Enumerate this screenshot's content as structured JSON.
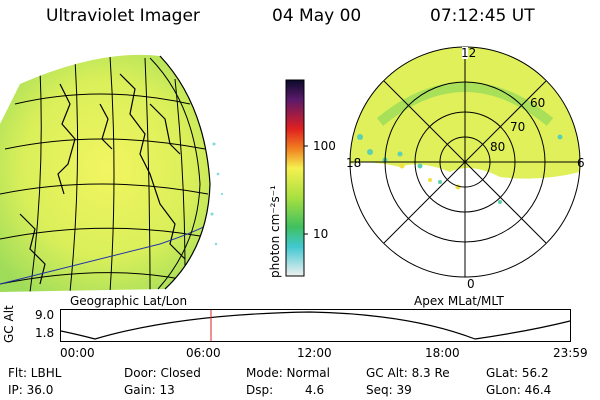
{
  "header": {
    "instrument": "Ultraviolet Imager",
    "date": "04 May 00",
    "time": "07:12:45 UT"
  },
  "colorbar": {
    "unit_label": "photon cm⁻²s⁻¹",
    "ticks": [
      "100",
      "10"
    ]
  },
  "left_panel": {
    "label": "Geographic Lat/Lon"
  },
  "right_panel": {
    "label": "Apex MLat/MLT",
    "mlt_labels": [
      "12",
      "18",
      "6",
      "0"
    ],
    "mlat_labels": [
      "60",
      "70",
      "80"
    ]
  },
  "altitude_plot": {
    "ylabel": "GC Alt",
    "yticks": [
      "9.0",
      "1.8"
    ],
    "xticks": [
      "00:00",
      "06:00",
      "12:00",
      "18:00",
      "23:59"
    ],
    "marker_time": "07:12"
  },
  "info": {
    "flt": "Flt: LBHL",
    "ip": "IP: 36.0",
    "door": "Door: Closed",
    "gain": "Gain: 13",
    "mode": "Mode: Normal",
    "dsp_label": "Dsp:",
    "dsp_value": "4.6",
    "gc_alt": "GC Alt: 8.3 Re",
    "seq": "Seq: 39",
    "glat": "GLat: 56.2",
    "glon": "GLon: 46.4"
  }
}
